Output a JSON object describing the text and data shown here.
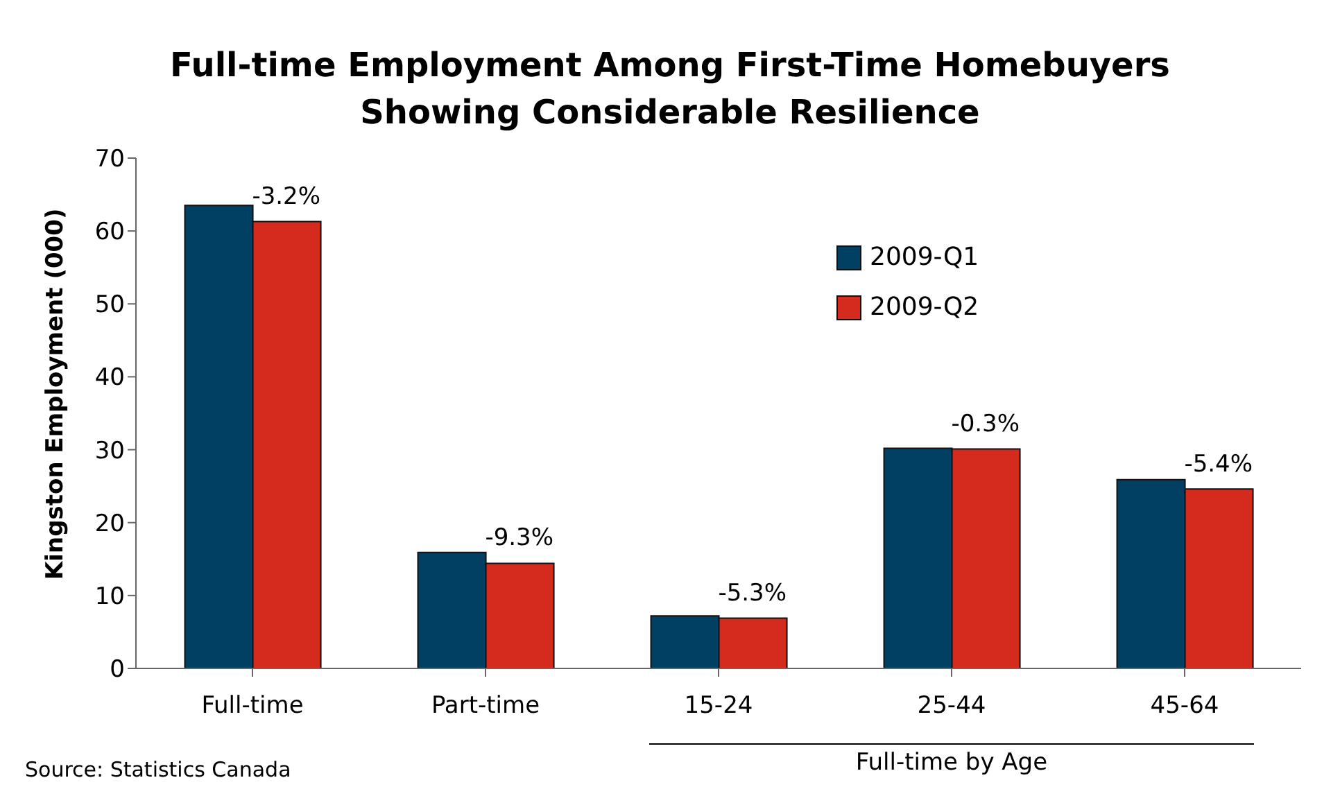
{
  "chart_data": {
    "type": "bar",
    "title": "Full-time Employment Among First-Time Homebuyers Showing Considerable Resilience",
    "ylabel": "Kingston Employment (000)",
    "categories": [
      "Full-time",
      "Part-time",
      "15-24",
      "25-44",
      "45-64"
    ],
    "series": [
      {
        "name": "2009-Q1",
        "color": "#024063",
        "values": [
          63.5,
          15.9,
          7.2,
          30.2,
          25.9
        ]
      },
      {
        "name": "2009-Q2",
        "color": "#d52b1e",
        "values": [
          61.3,
          14.4,
          6.9,
          30.1,
          24.6
        ]
      }
    ],
    "ylim": [
      0,
      70
    ],
    "yticks": [
      0,
      10,
      20,
      30,
      40,
      50,
      60,
      70
    ],
    "grid": false,
    "legend": "top right",
    "annotations": [
      {
        "text": "-3.2%",
        "x": "Full-time",
        "y": 61.3
      },
      {
        "text": "-9.3%",
        "x": "Part-time",
        "y": 14.4
      },
      {
        "text": "-5.3%",
        "x": "15-24",
        "y": 6.9
      },
      {
        "text": "-0.3%",
        "x": "25-44",
        "y": 30.1
      },
      {
        "text": "-5.4%",
        "x": "45-64",
        "y": 24.6
      },
      "Full-time by Age",
      "Source: Statistics Canada"
    ]
  }
}
